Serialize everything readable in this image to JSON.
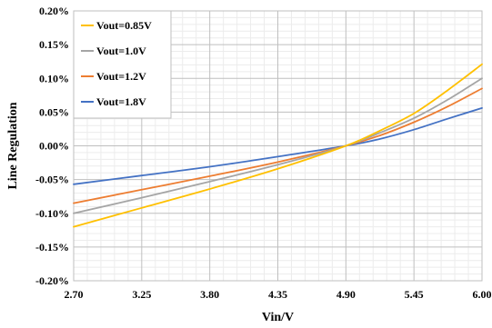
{
  "chart_data": {
    "type": "line",
    "xlabel": "Vin/V",
    "ylabel": "Line Regulation",
    "x_ticks": [
      "2.70",
      "3.25",
      "3.80",
      "4.35",
      "4.90",
      "5.45",
      "6.00"
    ],
    "y_ticks": [
      "-0.20%",
      "-0.15%",
      "-0.10%",
      "-0.05%",
      "0.00%",
      "0.05%",
      "0.10%",
      "0.15%",
      "0.20%"
    ],
    "xlim": [
      2.7,
      6.0
    ],
    "ylim": [
      -0.2,
      0.2
    ],
    "y_unit": "%",
    "grid": true,
    "minor_grid": true,
    "legend_position": "top-left",
    "series": [
      {
        "name": "Vout=0.85V",
        "color": "#FFC000",
        "x": [
          2.7,
          3.25,
          3.8,
          4.35,
          4.9,
          5.17,
          5.45,
          5.72,
          6.0
        ],
        "y": [
          -0.12,
          -0.092,
          -0.064,
          -0.034,
          0.0,
          0.022,
          0.048,
          0.082,
          0.121
        ]
      },
      {
        "name": "Vout=1.0V",
        "color": "#A5A5A5",
        "x": [
          2.7,
          3.25,
          3.8,
          4.35,
          4.9,
          5.17,
          5.45,
          5.72,
          6.0
        ],
        "y": [
          -0.1,
          -0.077,
          -0.053,
          -0.028,
          0.0,
          0.019,
          0.041,
          0.068,
          0.1
        ]
      },
      {
        "name": "Vout=1.2V",
        "color": "#ED7D31",
        "x": [
          2.7,
          3.25,
          3.8,
          4.35,
          4.9,
          5.17,
          5.45,
          5.72,
          6.0
        ],
        "y": [
          -0.085,
          -0.065,
          -0.045,
          -0.024,
          0.0,
          0.015,
          0.035,
          0.058,
          0.085
        ]
      },
      {
        "name": "Vout=1.8V",
        "color": "#4472C4",
        "x": [
          2.7,
          3.25,
          3.8,
          4.35,
          4.9,
          5.17,
          5.45,
          5.72,
          6.0
        ],
        "y": [
          -0.057,
          -0.044,
          -0.031,
          -0.016,
          0.0,
          0.01,
          0.024,
          0.04,
          0.056
        ]
      }
    ]
  }
}
